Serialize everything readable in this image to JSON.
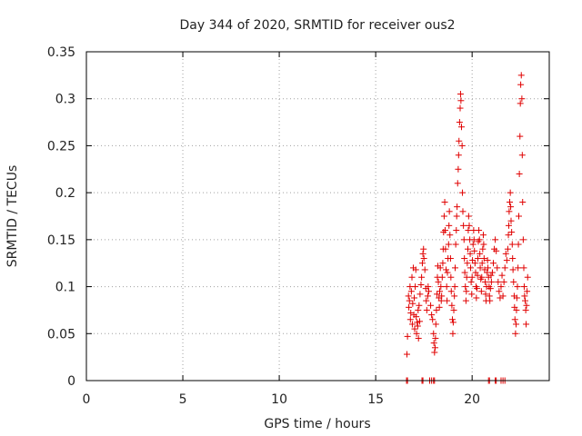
{
  "chart_data": {
    "type": "scatter",
    "title": "Day 344 of 2020, SRMTID for receiver ous2",
    "xlabel": "GPS time / hours",
    "ylabel": "SRMTID / TECUs",
    "xlim": [
      0,
      24
    ],
    "ylim": [
      0,
      0.35
    ],
    "xticks": [
      0,
      5,
      10,
      15,
      20
    ],
    "yticks": [
      0,
      0.05,
      0.1,
      0.15,
      0.2,
      0.25,
      0.3,
      0.35
    ],
    "ytick_labels": [
      "0",
      "0.05",
      "0.1",
      "0.15",
      "0.2",
      "0.25",
      "0.3",
      "0.35"
    ],
    "grid": true,
    "marker": "+",
    "color": "#e00000",
    "series": [
      {
        "name": "SRMTID",
        "points": [
          [
            16.6,
            0.0
          ],
          [
            16.65,
            0.0
          ],
          [
            17.4,
            0.0
          ],
          [
            17.45,
            0.0
          ],
          [
            17.8,
            0.0
          ],
          [
            17.9,
            0.0
          ],
          [
            18.0,
            0.0
          ],
          [
            18.05,
            0.0
          ],
          [
            20.85,
            0.0
          ],
          [
            20.9,
            0.0
          ],
          [
            21.2,
            0.0
          ],
          [
            21.25,
            0.0
          ],
          [
            21.5,
            0.0
          ],
          [
            21.6,
            0.0
          ],
          [
            21.7,
            0.0
          ],
          [
            16.62,
            0.028
          ],
          [
            16.65,
            0.047
          ],
          [
            16.7,
            0.09
          ],
          [
            16.72,
            0.078
          ],
          [
            16.75,
            0.085
          ],
          [
            16.78,
            0.1
          ],
          [
            16.8,
            0.065
          ],
          [
            16.82,
            0.072
          ],
          [
            16.85,
            0.095
          ],
          [
            16.88,
            0.11
          ],
          [
            16.9,
            0.06
          ],
          [
            16.92,
            0.082
          ],
          [
            16.95,
            0.12
          ],
          [
            16.98,
            0.07
          ],
          [
            17.0,
            0.088
          ],
          [
            17.02,
            0.055
          ],
          [
            17.05,
            0.1
          ],
          [
            17.08,
            0.118
          ],
          [
            17.1,
            0.068
          ],
          [
            17.12,
            0.05
          ],
          [
            17.15,
            0.062
          ],
          [
            17.18,
            0.058
          ],
          [
            17.2,
            0.075
          ],
          [
            17.22,
            0.045
          ],
          [
            17.25,
            0.08
          ],
          [
            17.28,
            0.063
          ],
          [
            17.3,
            0.092
          ],
          [
            17.35,
            0.102
          ],
          [
            17.38,
            0.11
          ],
          [
            17.42,
            0.125
          ],
          [
            17.45,
            0.135
          ],
          [
            17.48,
            0.14
          ],
          [
            17.5,
            0.13
          ],
          [
            17.55,
            0.118
          ],
          [
            17.6,
            0.098
          ],
          [
            17.62,
            0.085
          ],
          [
            17.65,
            0.075
          ],
          [
            17.7,
            0.09
          ],
          [
            17.72,
            0.1
          ],
          [
            17.75,
            0.095
          ],
          [
            17.85,
            0.08
          ],
          [
            17.9,
            0.07
          ],
          [
            17.95,
            0.065
          ],
          [
            18.0,
            0.05
          ],
          [
            18.02,
            0.04
          ],
          [
            18.05,
            0.03
          ],
          [
            18.08,
            0.035
          ],
          [
            18.1,
            0.045
          ],
          [
            18.12,
            0.06
          ],
          [
            18.15,
            0.075
          ],
          [
            18.18,
            0.092
          ],
          [
            18.2,
            0.11
          ],
          [
            18.22,
            0.122
          ],
          [
            18.25,
            0.105
          ],
          [
            18.28,
            0.088
          ],
          [
            18.3,
            0.078
          ],
          [
            18.32,
            0.095
          ],
          [
            18.35,
            0.12
          ],
          [
            18.38,
            0.1
          ],
          [
            18.4,
            0.085
          ],
          [
            18.42,
            0.09
          ],
          [
            18.45,
            0.11
          ],
          [
            18.48,
            0.125
          ],
          [
            18.5,
            0.14
          ],
          [
            18.52,
            0.158
          ],
          [
            18.55,
            0.175
          ],
          [
            18.58,
            0.19
          ],
          [
            18.6,
            0.16
          ],
          [
            18.62,
            0.14
          ],
          [
            18.65,
            0.118
          ],
          [
            18.68,
            0.1
          ],
          [
            18.7,
            0.085
          ],
          [
            18.72,
            0.115
          ],
          [
            18.75,
            0.13
          ],
          [
            18.78,
            0.145
          ],
          [
            18.8,
            0.165
          ],
          [
            18.82,
            0.18
          ],
          [
            18.85,
            0.155
          ],
          [
            18.88,
            0.13
          ],
          [
            18.9,
            0.11
          ],
          [
            18.92,
            0.095
          ],
          [
            18.95,
            0.08
          ],
          [
            18.98,
            0.065
          ],
          [
            19.0,
            0.05
          ],
          [
            19.02,
            0.062
          ],
          [
            19.05,
            0.075
          ],
          [
            19.08,
            0.09
          ],
          [
            19.1,
            0.1
          ],
          [
            19.12,
            0.12
          ],
          [
            19.15,
            0.145
          ],
          [
            19.18,
            0.16
          ],
          [
            19.2,
            0.175
          ],
          [
            19.22,
            0.185
          ],
          [
            19.25,
            0.21
          ],
          [
            19.28,
            0.225
          ],
          [
            19.3,
            0.24
          ],
          [
            19.32,
            0.255
          ],
          [
            19.35,
            0.275
          ],
          [
            19.38,
            0.29
          ],
          [
            19.4,
            0.305
          ],
          [
            19.42,
            0.298
          ],
          [
            19.45,
            0.27
          ],
          [
            19.48,
            0.25
          ],
          [
            19.5,
            0.2
          ],
          [
            19.52,
            0.18
          ],
          [
            19.55,
            0.165
          ],
          [
            19.58,
            0.15
          ],
          [
            19.6,
            0.13
          ],
          [
            19.62,
            0.115
          ],
          [
            19.65,
            0.1
          ],
          [
            19.68,
            0.085
          ],
          [
            19.7,
            0.095
          ],
          [
            19.72,
            0.11
          ],
          [
            19.75,
            0.125
          ],
          [
            19.78,
            0.14
          ],
          [
            19.8,
            0.16
          ],
          [
            19.82,
            0.175
          ],
          [
            19.85,
            0.165
          ],
          [
            19.88,
            0.15
          ],
          [
            19.9,
            0.135
          ],
          [
            19.92,
            0.12
          ],
          [
            19.95,
            0.105
          ],
          [
            19.98,
            0.092
          ],
          [
            20.0,
            0.11
          ],
          [
            20.02,
            0.128
          ],
          [
            20.05,
            0.145
          ],
          [
            20.08,
            0.16
          ],
          [
            20.1,
            0.15
          ],
          [
            20.12,
            0.138
          ],
          [
            20.15,
            0.125
          ],
          [
            20.18,
            0.115
          ],
          [
            20.2,
            0.1
          ],
          [
            20.22,
            0.088
          ],
          [
            20.25,
            0.098
          ],
          [
            20.28,
            0.112
          ],
          [
            20.3,
            0.13
          ],
          [
            20.32,
            0.148
          ],
          [
            20.35,
            0.16
          ],
          [
            20.38,
            0.15
          ],
          [
            20.4,
            0.135
          ],
          [
            20.42,
            0.12
          ],
          [
            20.45,
            0.108
          ],
          [
            20.48,
            0.095
          ],
          [
            20.5,
            0.11
          ],
          [
            20.52,
            0.125
          ],
          [
            20.55,
            0.14
          ],
          [
            20.58,
            0.155
          ],
          [
            20.6,
            0.145
          ],
          [
            20.62,
            0.13
          ],
          [
            20.65,
            0.118
          ],
          [
            20.68,
            0.105
          ],
          [
            20.7,
            0.092
          ],
          [
            20.72,
            0.085
          ],
          [
            20.75,
            0.1
          ],
          [
            20.78,
            0.115
          ],
          [
            20.8,
            0.128
          ],
          [
            20.82,
            0.12
          ],
          [
            20.85,
            0.11
          ],
          [
            20.88,
            0.1
          ],
          [
            20.9,
            0.09
          ],
          [
            20.92,
            0.085
          ],
          [
            20.95,
            0.098
          ],
          [
            20.98,
            0.112
          ],
          [
            21.0,
            0.105
          ],
          [
            21.05,
            0.115
          ],
          [
            21.1,
            0.125
          ],
          [
            21.15,
            0.14
          ],
          [
            21.2,
            0.15
          ],
          [
            21.25,
            0.138
          ],
          [
            21.3,
            0.12
          ],
          [
            21.35,
            0.105
          ],
          [
            21.4,
            0.095
          ],
          [
            21.45,
            0.088
          ],
          [
            21.5,
            0.1
          ],
          [
            21.55,
            0.112
          ],
          [
            21.6,
            0.09
          ],
          [
            21.65,
            0.105
          ],
          [
            21.7,
            0.12
          ],
          [
            21.75,
            0.135
          ],
          [
            21.8,
            0.128
          ],
          [
            21.85,
            0.14
          ],
          [
            21.88,
            0.155
          ],
          [
            21.9,
            0.165
          ],
          [
            21.92,
            0.18
          ],
          [
            21.95,
            0.19
          ],
          [
            21.98,
            0.2
          ],
          [
            22.0,
            0.185
          ],
          [
            22.02,
            0.17
          ],
          [
            22.05,
            0.158
          ],
          [
            22.08,
            0.145
          ],
          [
            22.1,
            0.13
          ],
          [
            22.12,
            0.118
          ],
          [
            22.15,
            0.105
          ],
          [
            22.18,
            0.09
          ],
          [
            22.2,
            0.078
          ],
          [
            22.22,
            0.065
          ],
          [
            22.25,
            0.05
          ],
          [
            22.28,
            0.06
          ],
          [
            22.3,
            0.075
          ],
          [
            22.32,
            0.088
          ],
          [
            22.35,
            0.1
          ],
          [
            22.38,
            0.12
          ],
          [
            22.4,
            0.145
          ],
          [
            22.42,
            0.175
          ],
          [
            22.45,
            0.22
          ],
          [
            22.48,
            0.26
          ],
          [
            22.5,
            0.295
          ],
          [
            22.52,
            0.315
          ],
          [
            22.55,
            0.325
          ],
          [
            22.58,
            0.3
          ],
          [
            22.6,
            0.24
          ],
          [
            22.62,
            0.19
          ],
          [
            22.65,
            0.15
          ],
          [
            22.68,
            0.12
          ],
          [
            22.7,
            0.1
          ],
          [
            22.72,
            0.09
          ],
          [
            22.75,
            0.085
          ],
          [
            22.78,
            0.075
          ],
          [
            22.8,
            0.06
          ],
          [
            22.82,
            0.08
          ],
          [
            22.85,
            0.095
          ],
          [
            22.88,
            0.11
          ]
        ]
      }
    ]
  }
}
